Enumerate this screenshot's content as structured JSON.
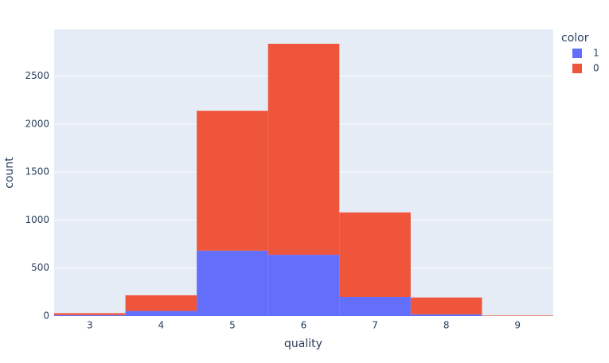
{
  "chart_data": {
    "type": "histogram",
    "x_label": "quality",
    "y_label": "count",
    "bins": [
      2.5,
      3.5,
      4.5,
      5.5,
      6.5,
      7.5,
      8.5,
      9.5
    ],
    "series": [
      {
        "name": "1",
        "color": "#636efa",
        "values": [
          10,
          53,
          681,
          638,
          199,
          18,
          0
        ]
      },
      {
        "name": "0",
        "color": "#ef553b",
        "values": [
          20,
          163,
          1457,
          2198,
          880,
          175,
          5
        ]
      }
    ],
    "stacked": true,
    "legend_title": "color",
    "legend": "top-right",
    "xlim": [
      2.5,
      9.5
    ],
    "xticks": [
      3,
      4,
      5,
      6,
      7,
      8,
      9
    ],
    "ylim": [
      0,
      2985
    ],
    "yticks": [
      0,
      500,
      1000,
      1500,
      2000,
      2500
    ],
    "grid": true
  }
}
